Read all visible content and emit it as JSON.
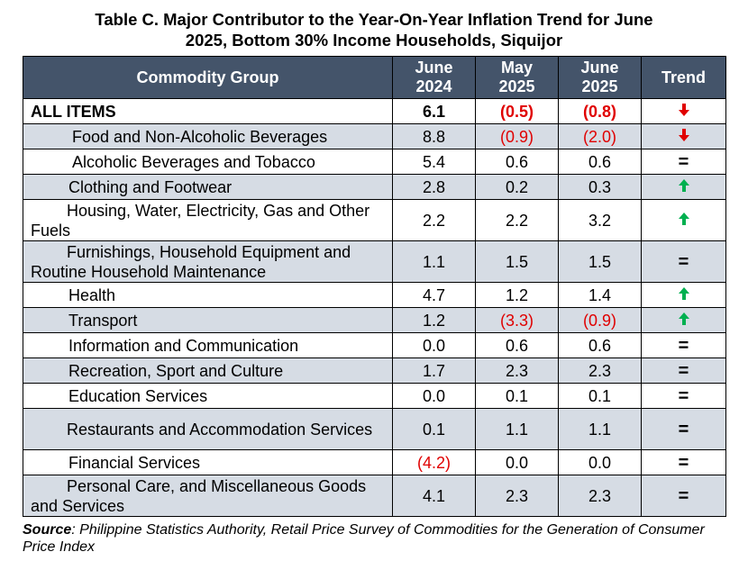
{
  "title": {
    "line1": "Table C. Major Contributor to the Year-On-Year Inflation Trend for June",
    "line2": "2025, Bottom 30% Income Households, Siquijor"
  },
  "headers": {
    "commodity": "Commodity Group",
    "col1_l1": "June",
    "col1_l2": "2024",
    "col2_l1": "May",
    "col2_l2": "2025",
    "col3_l1": "June",
    "col3_l2": "2025",
    "trend": "Trend"
  },
  "rows": [
    {
      "name": "ALL ITEMS",
      "v1": "6.1",
      "v2": "(0.5)",
      "v3": "(0.8)",
      "trend": "down"
    },
    {
      "name": "Food and Non-Alcoholic Beverages",
      "v1": "8.8",
      "v2": "(0.9)",
      "v3": "(2.0)",
      "trend": "down"
    },
    {
      "name": "Alcoholic Beverages and Tobacco",
      "v1": "5.4",
      "v2": "0.6",
      "v3": "0.6",
      "trend": "="
    },
    {
      "name": "Clothing and Footwear",
      "v1": "2.8",
      "v2": "0.2",
      "v3": "0.3",
      "trend": "up"
    },
    {
      "name": "Housing, Water, Electricity, Gas and Other Fuels",
      "v1": "2.2",
      "v2": "2.2",
      "v3": "3.2",
      "trend": "up"
    },
    {
      "name": "Furnishings, Household Equipment and Routine Household Maintenance",
      "v1": "1.1",
      "v2": "1.5",
      "v3": "1.5",
      "trend": "="
    },
    {
      "name": "Health",
      "v1": "4.7",
      "v2": "1.2",
      "v3": "1.4",
      "trend": "up"
    },
    {
      "name": "Transport",
      "v1": "1.2",
      "v2": "(3.3)",
      "v3": "(0.9)",
      "trend": "up"
    },
    {
      "name": "Information and Communication",
      "v1": "0.0",
      "v2": "0.6",
      "v3": "0.6",
      "trend": "="
    },
    {
      "name": "Recreation, Sport and Culture",
      "v1": "1.7",
      "v2": "2.3",
      "v3": "2.3",
      "trend": "="
    },
    {
      "name": "Education Services",
      "v1": "0.0",
      "v2": "0.1",
      "v3": "0.1",
      "trend": "="
    },
    {
      "name": "Restaurants and Accommodation Services",
      "v1": "0.1",
      "v2": "1.1",
      "v3": "1.1",
      "trend": "="
    },
    {
      "name": "Financial Services",
      "v1": "(4.2)",
      "v2": "0.0",
      "v3": "0.0",
      "trend": "="
    },
    {
      "name": "Personal Care, and Miscellaneous Goods and Services",
      "v1": "4.1",
      "v2": "2.3",
      "v3": "2.3",
      "trend": "="
    }
  ],
  "source": {
    "label": "Source",
    "text": ": Philippine Statistics Authority, Retail Price Survey of Commodities for the Generation of Consumer Price Index"
  },
  "colors": {
    "header_bg": "#44546a",
    "shaded_row": "#d6dce4",
    "negative": "#e00000",
    "down_arrow": "#e00000",
    "up_arrow": "#00b050"
  }
}
